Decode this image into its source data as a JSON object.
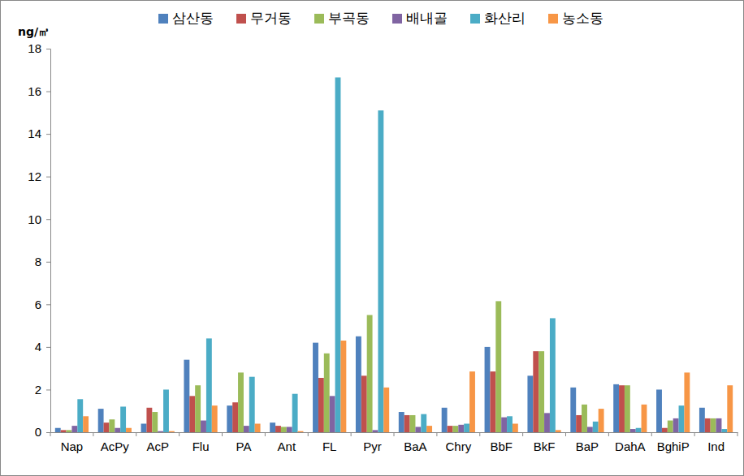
{
  "chart_data": {
    "type": "bar",
    "y_label": "ng/㎥",
    "categories": [
      "Nap",
      "AcPy",
      "AcP",
      "Flu",
      "PA",
      "Ant",
      "FL",
      "Pyr",
      "BaA",
      "Chry",
      "BbF",
      "BkF",
      "BaP",
      "DahA",
      "BghiP",
      "Ind"
    ],
    "series": [
      {
        "name": "삼산동",
        "color": "#4f81bd",
        "values": [
          0.2,
          1.1,
          0.4,
          3.4,
          1.25,
          0.45,
          4.2,
          4.5,
          0.95,
          1.15,
          4.0,
          2.65,
          2.1,
          2.25,
          2.0,
          1.15
        ]
      },
      {
        "name": "무거동",
        "color": "#c0504d",
        "values": [
          0.1,
          0.45,
          1.15,
          1.7,
          1.4,
          0.3,
          2.55,
          2.65,
          0.8,
          0.3,
          2.85,
          3.8,
          0.8,
          2.2,
          0.2,
          0.65
        ]
      },
      {
        "name": "부곡동",
        "color": "#9bbb59",
        "values": [
          0.1,
          0.6,
          0.95,
          2.2,
          2.8,
          0.25,
          3.7,
          5.5,
          0.8,
          0.3,
          6.15,
          3.8,
          1.3,
          2.2,
          0.55,
          0.65
        ]
      },
      {
        "name": "배내골",
        "color": "#8064a2",
        "values": [
          0.3,
          0.2,
          0.05,
          0.55,
          0.3,
          0.25,
          1.7,
          0.1,
          0.25,
          0.35,
          0.7,
          0.9,
          0.25,
          0.15,
          0.65,
          0.65
        ]
      },
      {
        "name": "화산리",
        "color": "#4bacc6",
        "values": [
          1.55,
          1.2,
          2.0,
          4.4,
          2.6,
          1.8,
          16.65,
          15.1,
          0.85,
          0.4,
          0.75,
          5.35,
          0.5,
          0.2,
          1.25,
          0.15
        ]
      },
      {
        "name": "농소동",
        "color": "#f79646",
        "values": [
          0.75,
          0.2,
          0.05,
          1.25,
          0.4,
          0.05,
          4.3,
          2.1,
          0.3,
          2.85,
          0.4,
          0.1,
          1.1,
          1.3,
          2.8,
          2.2
        ]
      }
    ],
    "ylim": [
      0,
      18
    ],
    "yticks": [
      0,
      2,
      4,
      6,
      8,
      10,
      12,
      14,
      16,
      18
    ],
    "grid": false,
    "legend": "top"
  }
}
